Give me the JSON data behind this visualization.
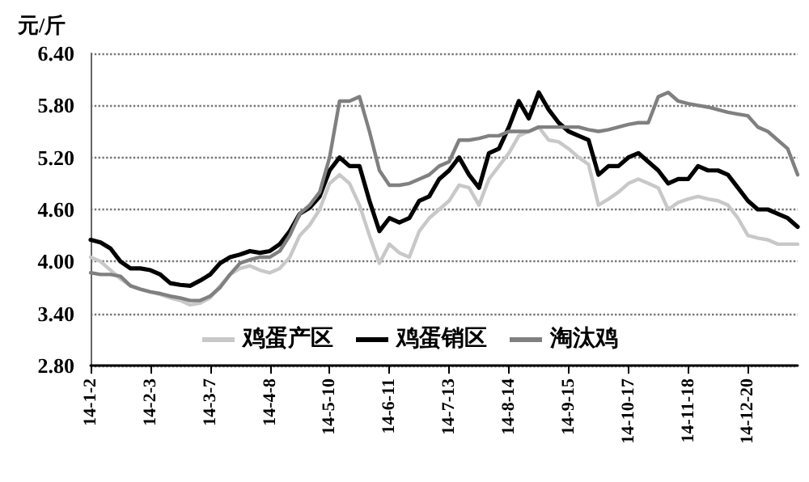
{
  "chart_data": {
    "type": "line",
    "ylabel": "元/斤",
    "categories": [
      "14-1-2",
      null,
      null,
      null,
      null,
      null,
      "14-2-3",
      null,
      null,
      null,
      null,
      null,
      "14-3-7",
      null,
      null,
      null,
      null,
      null,
      "14-4-8",
      null,
      null,
      null,
      null,
      null,
      "14-5-10",
      null,
      null,
      null,
      null,
      null,
      "14-6-11",
      null,
      null,
      null,
      null,
      null,
      "14-7-13",
      null,
      null,
      null,
      null,
      null,
      "14-8-14",
      null,
      null,
      null,
      null,
      null,
      "14-9-15",
      null,
      null,
      null,
      null,
      null,
      "14-10-17",
      null,
      null,
      null,
      null,
      null,
      "14-11-18",
      null,
      null,
      null,
      null,
      null,
      "14-12-20",
      null,
      null,
      null,
      null,
      null
    ],
    "series": [
      {
        "name": "鸡蛋产区",
        "color": "#c8c8c8",
        "values": [
          4.05,
          4.0,
          3.9,
          3.8,
          3.72,
          3.68,
          3.65,
          3.62,
          3.58,
          3.55,
          3.5,
          3.52,
          3.58,
          3.72,
          3.85,
          3.92,
          3.95,
          3.9,
          3.87,
          3.92,
          4.05,
          4.3,
          4.42,
          4.6,
          4.9,
          5.0,
          4.9,
          4.65,
          4.3,
          3.98,
          4.2,
          4.1,
          4.05,
          4.35,
          4.5,
          4.6,
          4.7,
          4.88,
          4.85,
          4.65,
          4.95,
          5.1,
          5.25,
          5.45,
          5.5,
          5.55,
          5.4,
          5.38,
          5.3,
          5.2,
          5.12,
          4.65,
          4.72,
          4.8,
          4.9,
          4.95,
          4.9,
          4.85,
          4.6,
          4.68,
          4.72,
          4.75,
          4.72,
          4.7,
          4.65,
          4.5,
          4.3,
          4.27,
          4.25,
          4.2,
          4.2,
          4.2
        ]
      },
      {
        "name": "鸡蛋销区",
        "color": "#000000",
        "values": [
          4.25,
          4.22,
          4.15,
          4.0,
          3.92,
          3.92,
          3.9,
          3.85,
          3.75,
          3.73,
          3.72,
          3.78,
          3.85,
          3.98,
          4.05,
          4.08,
          4.12,
          4.1,
          4.12,
          4.2,
          4.35,
          4.55,
          4.62,
          4.75,
          5.05,
          5.2,
          5.1,
          5.1,
          4.7,
          4.35,
          4.5,
          4.45,
          4.5,
          4.7,
          4.75,
          4.95,
          5.05,
          5.2,
          5.0,
          4.85,
          5.25,
          5.3,
          5.55,
          5.85,
          5.65,
          5.95,
          5.75,
          5.6,
          5.5,
          5.45,
          5.4,
          5.0,
          5.1,
          5.1,
          5.2,
          5.25,
          5.15,
          5.05,
          4.9,
          4.95,
          4.95,
          5.1,
          5.05,
          5.05,
          5.0,
          4.85,
          4.7,
          4.6,
          4.6,
          4.55,
          4.5,
          4.4
        ]
      },
      {
        "name": "淘汰鸡",
        "color": "#808080",
        "values": [
          3.87,
          3.85,
          3.85,
          3.83,
          3.72,
          3.68,
          3.65,
          3.63,
          3.6,
          3.58,
          3.55,
          3.55,
          3.6,
          3.7,
          3.85,
          3.98,
          4.02,
          4.05,
          4.05,
          4.12,
          4.3,
          4.55,
          4.65,
          4.8,
          5.2,
          5.85,
          5.85,
          5.9,
          5.5,
          5.05,
          4.88,
          4.88,
          4.9,
          4.95,
          5.0,
          5.1,
          5.15,
          5.4,
          5.4,
          5.42,
          5.45,
          5.45,
          5.5,
          5.5,
          5.5,
          5.55,
          5.55,
          5.55,
          5.55,
          5.55,
          5.52,
          5.5,
          5.52,
          5.55,
          5.58,
          5.6,
          5.6,
          5.9,
          5.95,
          5.85,
          5.82,
          5.8,
          5.78,
          5.75,
          5.72,
          5.7,
          5.68,
          5.55,
          5.5,
          5.4,
          5.3,
          5.0
        ]
      }
    ],
    "ylim": [
      2.8,
      6.4
    ],
    "yticks": [
      {
        "value": 2.8,
        "label": "2.80"
      },
      {
        "value": 3.4,
        "label": "3.40"
      },
      {
        "value": 4.0,
        "label": "4.00"
      },
      {
        "value": 4.6,
        "label": "4.60"
      },
      {
        "value": 5.2,
        "label": "5.20"
      },
      {
        "value": 5.8,
        "label": "5.80"
      },
      {
        "value": 6.4,
        "label": "6.40"
      }
    ],
    "grid": "y",
    "legend": "bottom",
    "marker": "none",
    "line_style": "solid"
  }
}
